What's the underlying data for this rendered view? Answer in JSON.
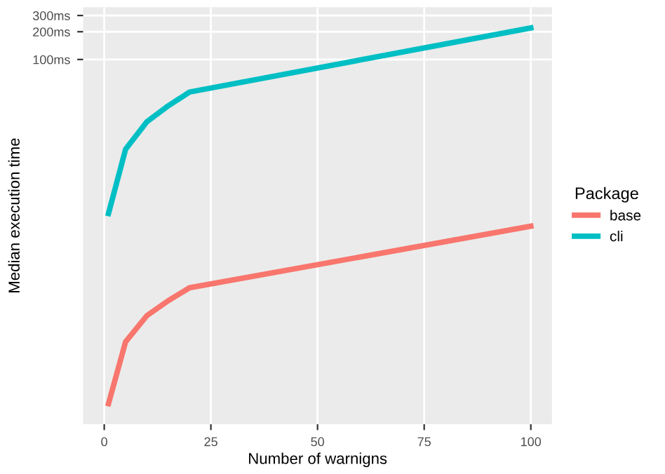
{
  "chart_data": {
    "type": "line",
    "xlabel": "Number of warnigns",
    "ylabel": "Median execution time",
    "legend_title": "Package",
    "legend": "right",
    "grid": true,
    "log": "y",
    "x": [
      1,
      5,
      10,
      15,
      20,
      100
    ],
    "series": [
      {
        "name": "base",
        "color": "#f8766d",
        "values": [
          0.0184,
          0.0863,
          0.166,
          0.241,
          0.333,
          1.55
        ]
      },
      {
        "name": "cli",
        "color": "#00bfc4",
        "values": [
          2.13,
          10.6,
          21.1,
          31.4,
          44.3,
          220
        ]
      }
    ],
    "xlim": [
      -4.95,
      104.95
    ],
    "xticks": [
      0,
      25,
      50,
      75,
      100
    ],
    "ylim": [
      0.011,
      370
    ],
    "yticks": [
      {
        "value": 100,
        "label": "100ms"
      },
      {
        "value": 200,
        "label": "200ms"
      },
      {
        "value": 300,
        "label": "300ms"
      }
    ]
  }
}
